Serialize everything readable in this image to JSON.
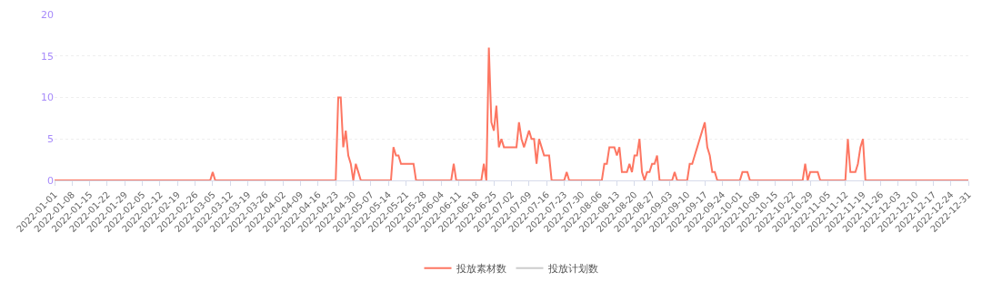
{
  "chart_data": {
    "type": "line",
    "x": [
      "2022-01-01",
      "2022-03-04",
      "2022-03-05",
      "2022-03-06",
      "2022-04-23",
      "2022-04-24",
      "2022-04-25",
      "2022-04-26",
      "2022-04-27",
      "2022-04-28",
      "2022-04-29",
      "2022-04-30",
      "2022-05-01",
      "2022-05-02",
      "2022-05-03",
      "2022-05-15",
      "2022-05-16",
      "2022-05-17",
      "2022-05-18",
      "2022-05-19",
      "2022-05-24",
      "2022-05-25",
      "2022-06-08",
      "2022-06-09",
      "2022-06-10",
      "2022-06-20",
      "2022-06-21",
      "2022-06-22",
      "2022-06-23",
      "2022-06-24",
      "2022-06-25",
      "2022-06-26",
      "2022-06-27",
      "2022-06-28",
      "2022-06-29",
      "2022-07-04",
      "2022-07-05",
      "2022-07-06",
      "2022-07-07",
      "2022-07-08",
      "2022-07-09",
      "2022-07-10",
      "2022-07-11",
      "2022-07-12",
      "2022-07-13",
      "2022-07-14",
      "2022-07-15",
      "2022-07-17",
      "2022-07-18",
      "2022-07-23",
      "2022-07-24",
      "2022-07-25",
      "2022-08-07",
      "2022-08-08",
      "2022-08-09",
      "2022-08-10",
      "2022-08-12",
      "2022-08-13",
      "2022-08-14",
      "2022-08-15",
      "2022-08-17",
      "2022-08-18",
      "2022-08-19",
      "2022-08-20",
      "2022-08-21",
      "2022-08-22",
      "2022-08-23",
      "2022-08-24",
      "2022-08-25",
      "2022-08-26",
      "2022-08-27",
      "2022-08-28",
      "2022-08-29",
      "2022-08-30",
      "2022-09-04",
      "2022-09-05",
      "2022-09-06",
      "2022-09-10",
      "2022-09-11",
      "2022-09-12",
      "2022-09-13",
      "2022-09-14",
      "2022-09-15",
      "2022-09-16",
      "2022-09-17",
      "2022-09-18",
      "2022-09-19",
      "2022-09-20",
      "2022-09-21",
      "2022-09-22",
      "2022-10-01",
      "2022-10-02",
      "2022-10-04",
      "2022-10-05",
      "2022-10-26",
      "2022-10-27",
      "2022-10-28",
      "2022-10-29",
      "2022-11-01",
      "2022-11-02",
      "2022-11-12",
      "2022-11-13",
      "2022-11-14",
      "2022-11-16",
      "2022-11-17",
      "2022-11-18",
      "2022-11-19",
      "2022-11-20",
      "2022-12-31"
    ],
    "series": [
      {
        "name": "投放素材数",
        "color": "#fd7662",
        "values": [
          0,
          0,
          1,
          0,
          0,
          10,
          10,
          4,
          6,
          3,
          2,
          0,
          2,
          1,
          0,
          0,
          4,
          3,
          3,
          2,
          2,
          0,
          0,
          2,
          0,
          0,
          2,
          0,
          16,
          7,
          6,
          9,
          4,
          5,
          4,
          4,
          7,
          5,
          4,
          5,
          6,
          5,
          5,
          2,
          5,
          4,
          3,
          3,
          0,
          0,
          1,
          0,
          0,
          2,
          2,
          4,
          4,
          3,
          4,
          1,
          1,
          2,
          1,
          3,
          3,
          5,
          1,
          0,
          1,
          1,
          2,
          2,
          3,
          0,
          0,
          1,
          0,
          0,
          2,
          2,
          3,
          4,
          5,
          6,
          7,
          4,
          3,
          1,
          1,
          0,
          0,
          1,
          1,
          0,
          0,
          2,
          0,
          1,
          1,
          0,
          0,
          5,
          1,
          1,
          2,
          4,
          5,
          0,
          0
        ]
      },
      {
        "name": "投放计划数",
        "color": "#cccccc",
        "values": [
          null,
          null,
          null,
          null,
          null,
          null,
          null,
          null,
          null,
          null,
          null,
          null,
          null,
          null,
          null,
          null,
          null,
          null,
          null,
          null,
          null,
          null,
          null,
          null,
          null,
          null,
          null,
          null,
          null,
          null,
          null,
          null,
          null,
          null,
          null,
          null,
          null,
          null,
          null,
          null,
          null,
          null,
          null,
          null,
          null,
          null,
          null,
          null,
          null,
          null,
          null,
          null,
          null,
          null,
          null,
          null,
          null,
          null,
          null,
          null,
          null,
          null,
          null,
          null,
          null,
          null,
          null,
          null,
          null,
          null,
          null,
          null,
          null,
          null,
          null,
          null,
          null,
          null,
          null,
          null,
          null,
          null,
          null,
          null,
          null,
          null,
          null,
          null,
          null,
          null,
          null,
          null,
          null,
          null,
          null,
          null,
          null,
          null,
          null,
          null,
          null,
          null,
          null,
          null,
          null,
          null,
          null,
          null,
          null
        ]
      }
    ],
    "xlim": [
      "2022-01-01",
      "2022-12-31"
    ],
    "xticks": [
      "2022-01-01",
      "2022-01-08",
      "2022-01-15",
      "2022-01-22",
      "2022-01-29",
      "2022-02-05",
      "2022-02-12",
      "2022-02-19",
      "2022-02-26",
      "2022-03-05",
      "2022-03-12",
      "2022-03-19",
      "2022-03-26",
      "2022-04-02",
      "2022-04-09",
      "2022-04-16",
      "2022-04-23",
      "2022-04-30",
      "2022-05-07",
      "2022-05-14",
      "2022-05-21",
      "2022-05-28",
      "2022-06-04",
      "2022-06-11",
      "2022-06-18",
      "2022-06-25",
      "2022-07-02",
      "2022-07-09",
      "2022-07-16",
      "2022-07-23",
      "2022-07-30",
      "2022-08-06",
      "2022-08-13",
      "2022-08-20",
      "2022-08-27",
      "2022-09-03",
      "2022-09-10",
      "2022-09-17",
      "2022-09-24",
      "2022-10-01",
      "2022-10-08",
      "2022-10-15",
      "2022-10-22",
      "2022-10-29",
      "2022-11-05",
      "2022-11-12",
      "2022-11-19",
      "2022-11-26",
      "2022-12-03",
      "2022-12-10",
      "2022-12-17",
      "2022-12-24",
      "2022-12-31"
    ],
    "ylim": [
      0,
      20
    ],
    "yticks": [
      0,
      5,
      10,
      15,
      20
    ],
    "grid": "y",
    "legend": "bottom",
    "marker": "none",
    "line_style": "solid"
  }
}
